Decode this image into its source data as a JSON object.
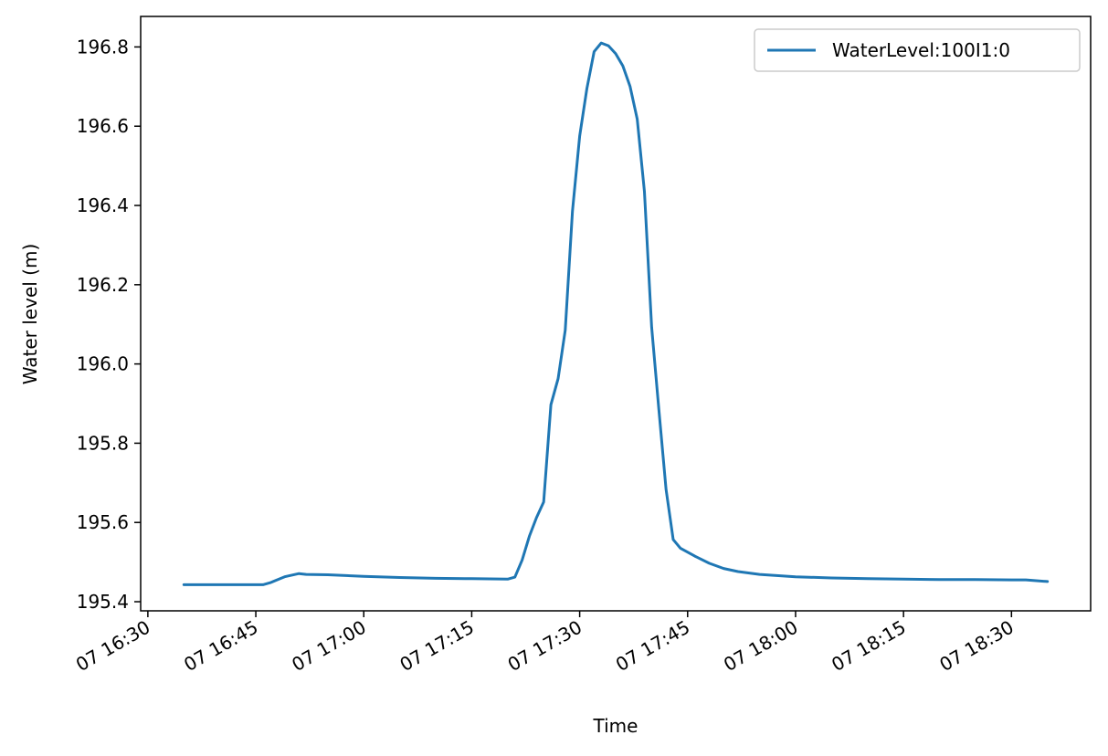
{
  "chart_data": {
    "type": "line",
    "title": "",
    "xlabel": "Time",
    "ylabel": "Water level (m)",
    "xlim": [
      "07 16:29",
      "07 18:41"
    ],
    "ylim": [
      195.377,
      196.877
    ],
    "legend_position": "top-right",
    "grid": false,
    "x_tick_labels": [
      "07 16:30",
      "07 16:45",
      "07 17:00",
      "07 17:15",
      "07 17:30",
      "07 17:45",
      "07 18:00",
      "07 18:15",
      "07 18:30"
    ],
    "y_tick_labels": [
      "195.4",
      "195.6",
      "195.8",
      "196.0",
      "196.2",
      "196.4",
      "196.6",
      "196.8"
    ],
    "series": [
      {
        "name": "WaterLevel:100I1:0",
        "color": "#1f77b4",
        "x": [
          "07 16:35",
          "07 16:46",
          "07 16:47",
          "07 16:49",
          "07 16:51",
          "07 16:52",
          "07 16:55",
          "07 17:00",
          "07 17:05",
          "07 17:10",
          "07 17:15",
          "07 17:20",
          "07 17:21",
          "07 17:22",
          "07 17:23",
          "07 17:24",
          "07 17:25",
          "07 17:26",
          "07 17:27",
          "07 17:28",
          "07 17:29",
          "07 17:30",
          "07 17:31",
          "07 17:32",
          "07 17:33",
          "07 17:34",
          "07 17:35",
          "07 17:36",
          "07 17:37",
          "07 17:38",
          "07 17:39",
          "07 17:40",
          "07 17:41",
          "07 17:42",
          "07 17:43",
          "07 17:44",
          "07 17:46",
          "07 17:48",
          "07 17:50",
          "07 17:52",
          "07 17:55",
          "07 18:00",
          "07 18:05",
          "07 18:10",
          "07 18:15",
          "07 18:20",
          "07 18:25",
          "07 18:30",
          "07 18:32",
          "07 18:35"
        ],
        "y": [
          195.443,
          195.443,
          195.448,
          195.463,
          195.471,
          195.469,
          195.468,
          195.464,
          195.461,
          195.459,
          195.458,
          195.457,
          195.462,
          195.505,
          195.565,
          195.612,
          195.652,
          195.897,
          195.963,
          196.085,
          196.385,
          196.575,
          196.695,
          196.788,
          196.81,
          196.803,
          196.783,
          196.752,
          196.7,
          196.618,
          196.435,
          196.093,
          195.885,
          195.683,
          195.557,
          195.535,
          195.515,
          195.497,
          195.484,
          195.476,
          195.469,
          195.463,
          195.46,
          195.458,
          195.457,
          195.456,
          195.456,
          195.455,
          195.455,
          195.451
        ]
      }
    ]
  }
}
